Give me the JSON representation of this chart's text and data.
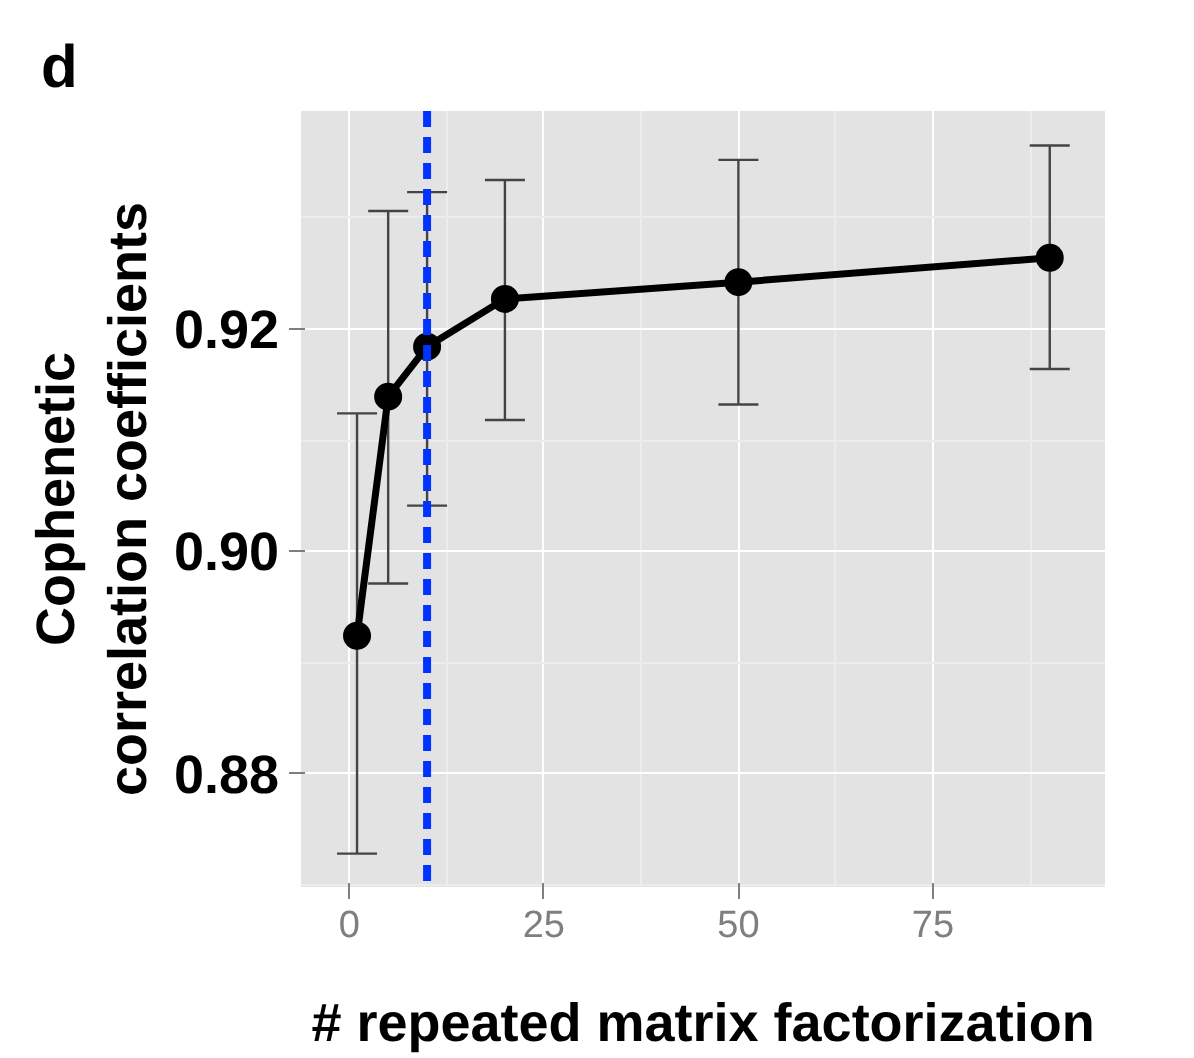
{
  "chart_data": {
    "type": "line",
    "title": "d",
    "xlabel": "# repeated matrix factorization",
    "ylabel": "Cophenetic\ncorrelation coefficients",
    "x": [
      1,
      5,
      10,
      20,
      50,
      90
    ],
    "series": [
      {
        "color": "#000000",
        "values": [
          0.8924,
          0.9139,
          0.9184,
          0.9227,
          0.9242,
          0.9264
        ],
        "errors": [
          [
            0.8728,
            0.9124
          ],
          [
            0.8971,
            0.9306
          ],
          [
            0.9041,
            0.9323
          ],
          [
            0.9118,
            0.9334
          ],
          [
            0.9132,
            0.9352
          ],
          [
            0.9164,
            0.9365
          ]
        ]
      }
    ],
    "xlim": [
      -6.2,
      97.1
    ],
    "ylim": [
      0.8698,
      0.9396
    ],
    "xticks": [
      0,
      25,
      50,
      75
    ],
    "yticks": [
      {
        "value": 0.88,
        "label": "0.88"
      },
      {
        "value": 0.9,
        "label": "0.90"
      },
      {
        "value": 0.92,
        "label": "0.92"
      }
    ],
    "ref_lines": [
      {
        "axis": "x",
        "value": 10,
        "label": null,
        "color": "#0033ff",
        "line_style": "dashed"
      }
    ],
    "grid": true,
    "marker": "circle",
    "line_style": "solid"
  }
}
